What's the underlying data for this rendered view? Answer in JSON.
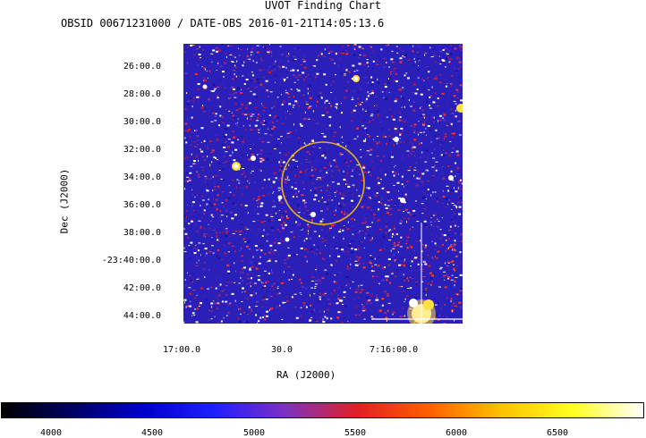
{
  "title": "UVOT Finding Chart",
  "subtitle": "OBSID 00671231000 / DATE-OBS 2016-01-21T14:05:13.6",
  "axes": {
    "ylabel": "Dec (J2000)",
    "xlabel": "RA (J2000)",
    "y_ticks": [
      "26:00.0",
      "28:00.0",
      "30:00.0",
      "32:00.0",
      "34:00.0",
      "36:00.0",
      "38:00.0",
      "-23:40:00.0",
      "42:00.0",
      "44:00.0"
    ],
    "x_ticks": [
      "17:00.0",
      "30.0",
      "7:16:00.0"
    ]
  },
  "colorbar": {
    "ticks": [
      "4000",
      "4500",
      "5000",
      "5500",
      "6000",
      "6500"
    ],
    "colors": [
      "#000000",
      "#000066",
      "#0000cc",
      "#2020ff",
      "#8030c0",
      "#e02020",
      "#ff6000",
      "#ffc000",
      "#ffff20",
      "#ffffff"
    ]
  },
  "image": {
    "background": "#2a1fb8",
    "circle_color": "#e0b020"
  }
}
